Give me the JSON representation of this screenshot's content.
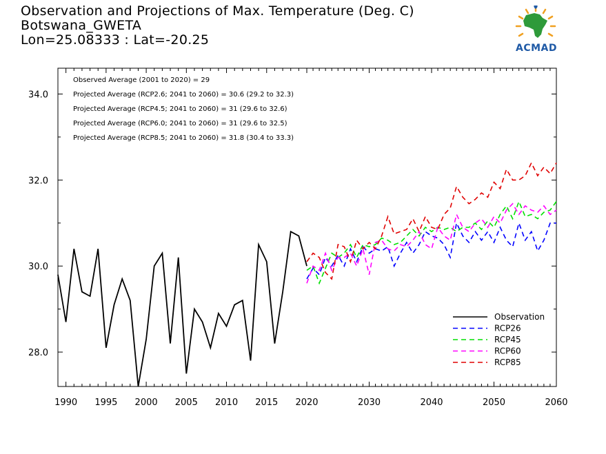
{
  "header": {
    "title_line1": "Observation and Projections of Max. Temperature (Deg. C)",
    "title_line2": "Botswana_GWETA",
    "title_line3": "Lon=25.08333 : Lat=-20.25"
  },
  "logo": {
    "text": "ACMAD",
    "icon": "africa-map-logo-icon"
  },
  "annotations": [
    "Observed Average (2001 to 2020) = 29",
    "Projected Average (RCP2.6; 2041 to 2060) = 30.6 (29.2 to 32.3)",
    "Projected Average (RCP4.5; 2041 to 2060) = 31 (29.6 to 32.6)",
    "Projected Average (RCP6.0; 2041 to 2060) = 31 (29.6 to 32.5)",
    "Projected Average (RCP8.5; 2041 to 2060) = 31.8 (30.4 to 33.3)"
  ],
  "colors": {
    "observation": "#000000",
    "rcp26": "#0000ff",
    "rcp45": "#00e000",
    "rcp60": "#ff00ff",
    "rcp85": "#e00000"
  },
  "chart_data": {
    "type": "line",
    "title": "Observation and Projections of Max. Temperature (Deg. C)",
    "xlim": [
      1989,
      2060
    ],
    "ylim": [
      27.2,
      34.6
    ],
    "x_ticks_left": [
      1990,
      1995,
      2000,
      2005,
      2010,
      2015,
      2020
    ],
    "x_ticks_right": [
      2030,
      2040,
      2050,
      2060
    ],
    "y_ticks": [
      28.0,
      30.0,
      32.0,
      34.0
    ],
    "y_tick_labels": [
      "28.0",
      "30.0",
      "32.0",
      "34.0"
    ],
    "legend_position": "bottom-right",
    "series": [
      {
        "name": "Observation",
        "style": "solid",
        "x": [
          1989,
          1990,
          1991,
          1992,
          1993,
          1994,
          1995,
          1996,
          1997,
          1998,
          1999,
          2000,
          2001,
          2002,
          2003,
          2004,
          2005,
          2006,
          2007,
          2008,
          2009,
          2010,
          2011,
          2012,
          2013,
          2014,
          2015,
          2016,
          2017,
          2018,
          2019,
          2020
        ],
        "values": [
          29.8,
          28.7,
          30.4,
          29.4,
          29.3,
          30.4,
          28.1,
          29.1,
          29.7,
          29.2,
          27.2,
          28.3,
          30.0,
          30.3,
          28.2,
          30.2,
          27.5,
          29.0,
          28.7,
          28.1,
          28.9,
          28.6,
          29.1,
          29.2,
          27.8,
          30.5,
          30.1,
          28.2,
          29.4,
          30.8,
          30.7,
          30.0
        ]
      },
      {
        "name": "RCP26",
        "style": "dashed",
        "x": [
          2020,
          2021,
          2022,
          2023,
          2024,
          2025,
          2026,
          2027,
          2028,
          2029,
          2030,
          2031,
          2032,
          2033,
          2034,
          2035,
          2036,
          2037,
          2038,
          2039,
          2040,
          2041,
          2042,
          2043,
          2044,
          2045,
          2046,
          2047,
          2048,
          2049,
          2050,
          2051,
          2052,
          2053,
          2054,
          2055,
          2056,
          2057,
          2058,
          2059,
          2060
        ],
        "values": [
          29.7,
          29.95,
          29.8,
          30.2,
          30.0,
          30.25,
          30.0,
          30.4,
          30.1,
          30.45,
          30.3,
          30.4,
          30.35,
          30.45,
          30.0,
          30.3,
          30.55,
          30.3,
          30.5,
          30.8,
          30.7,
          30.65,
          30.5,
          30.2,
          31.0,
          30.7,
          30.55,
          30.8,
          30.6,
          30.8,
          30.55,
          30.9,
          30.6,
          30.45,
          31.0,
          30.6,
          30.8,
          30.35,
          30.6,
          31.0,
          31.0
        ]
      },
      {
        "name": "RCP45",
        "style": "dashed",
        "x": [
          2020,
          2021,
          2022,
          2023,
          2024,
          2025,
          2026,
          2027,
          2028,
          2029,
          2030,
          2031,
          2032,
          2033,
          2034,
          2035,
          2036,
          2037,
          2038,
          2039,
          2040,
          2041,
          2042,
          2043,
          2044,
          2045,
          2046,
          2047,
          2048,
          2049,
          2050,
          2051,
          2052,
          2053,
          2054,
          2055,
          2056,
          2057,
          2058,
          2059,
          2060
        ],
        "values": [
          29.9,
          30.0,
          29.6,
          29.95,
          30.3,
          30.2,
          30.3,
          30.5,
          30.2,
          30.5,
          30.45,
          30.5,
          30.65,
          30.6,
          30.5,
          30.55,
          30.7,
          30.85,
          30.7,
          30.9,
          30.8,
          30.9,
          30.85,
          30.9,
          30.8,
          30.9,
          30.9,
          31.0,
          30.85,
          31.05,
          30.9,
          31.2,
          31.4,
          31.1,
          31.5,
          31.15,
          31.2,
          31.1,
          31.25,
          31.3,
          31.5
        ]
      },
      {
        "name": "RCP60",
        "style": "dashed",
        "x": [
          2020,
          2021,
          2022,
          2023,
          2024,
          2025,
          2026,
          2027,
          2028,
          2029,
          2030,
          2031,
          2032,
          2033,
          2034,
          2035,
          2036,
          2037,
          2038,
          2039,
          2040,
          2041,
          2042,
          2043,
          2044,
          2045,
          2046,
          2047,
          2048,
          2049,
          2050,
          2051,
          2052,
          2053,
          2054,
          2055,
          2056,
          2057,
          2058,
          2059,
          2060
        ],
        "values": [
          29.6,
          30.0,
          29.9,
          30.3,
          29.9,
          30.2,
          30.2,
          30.3,
          30.0,
          30.4,
          29.8,
          30.55,
          30.6,
          30.4,
          30.35,
          30.5,
          30.45,
          30.6,
          30.8,
          30.5,
          30.4,
          30.9,
          30.7,
          30.6,
          31.2,
          30.9,
          30.8,
          31.0,
          31.1,
          30.9,
          31.15,
          31.0,
          31.3,
          31.45,
          31.2,
          31.4,
          31.3,
          31.25,
          31.4,
          31.2,
          31.3
        ]
      },
      {
        "name": "RCP85",
        "style": "dashed",
        "x": [
          2020,
          2021,
          2022,
          2023,
          2024,
          2025,
          2026,
          2027,
          2028,
          2029,
          2030,
          2031,
          2032,
          2033,
          2034,
          2035,
          2036,
          2037,
          2038,
          2039,
          2040,
          2041,
          2042,
          2043,
          2044,
          2045,
          2046,
          2047,
          2048,
          2049,
          2050,
          2051,
          2052,
          2053,
          2054,
          2055,
          2056,
          2057,
          2058,
          2059,
          2060
        ],
        "values": [
          30.1,
          30.3,
          30.2,
          29.85,
          29.7,
          30.5,
          30.45,
          30.1,
          30.6,
          30.4,
          30.55,
          30.4,
          30.7,
          31.15,
          30.75,
          30.8,
          30.85,
          31.1,
          30.8,
          31.15,
          30.9,
          30.85,
          31.2,
          31.35,
          31.85,
          31.6,
          31.45,
          31.55,
          31.7,
          31.6,
          31.95,
          31.8,
          32.25,
          32.0,
          32.0,
          32.1,
          32.4,
          32.1,
          32.3,
          32.15,
          32.4
        ]
      }
    ]
  }
}
